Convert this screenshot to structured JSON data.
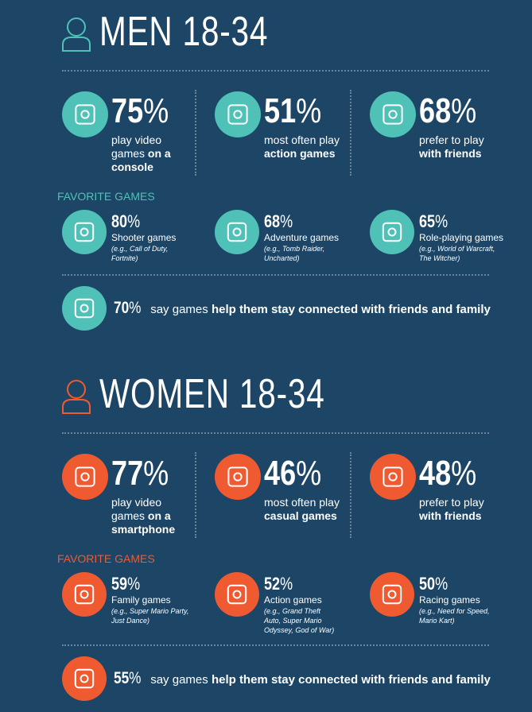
{
  "sections": [
    {
      "title": "MEN 18-34",
      "color": "#4fc1b6",
      "stats": [
        {
          "value": 75,
          "unit": "%",
          "parts": [
            {
              "text": "play video games"
            },
            {
              "text": "on a console",
              "bold": true
            }
          ]
        },
        {
          "value": 51,
          "unit": "%",
          "parts": [
            {
              "text": "most often play"
            },
            {
              "text": "action games",
              "bold": true
            }
          ]
        },
        {
          "value": 68,
          "unit": "%",
          "parts": [
            {
              "text": "prefer to play"
            },
            {
              "text": "with friends",
              "bold": true
            }
          ]
        }
      ],
      "favorites_label": "FAVORITE GAMES",
      "favorites": [
        {
          "value": 80,
          "unit": "%",
          "name": "Shooter games",
          "example": "(e.g., Call of Duty, Fortnite)"
        },
        {
          "value": 68,
          "unit": "%",
          "name": "Adventure games",
          "example": "(e.g., Tomb Raider, Uncharted)"
        },
        {
          "value": 65,
          "unit": "%",
          "name": "Role-playing games",
          "example": "(e.g., World of Warcraft, The Witcher)"
        }
      ],
      "connected": {
        "value": 70,
        "unit": "%",
        "text": "say games",
        "strong": "help them stay connected with friends and family"
      }
    },
    {
      "title": "WOMEN 18-34",
      "color": "#f05a30",
      "stats": [
        {
          "value": 77,
          "unit": "%",
          "parts": [
            {
              "text": "play video games"
            },
            {
              "text": "on a smartphone",
              "bold": true
            }
          ]
        },
        {
          "value": 46,
          "unit": "%",
          "parts": [
            {
              "text": "most often play"
            },
            {
              "text": "casual games",
              "bold": true
            }
          ]
        },
        {
          "value": 48,
          "unit": "%",
          "parts": [
            {
              "text": "prefer to play"
            },
            {
              "text": "with friends",
              "bold": true
            }
          ]
        }
      ],
      "favorites_label": "FAVORITE GAMES",
      "favorites": [
        {
          "value": 59,
          "unit": "%",
          "name": "Family games",
          "example": "(e.g., Super Mario Party, Just Dance)"
        },
        {
          "value": 52,
          "unit": "%",
          "name": "Action games",
          "example": "(e.g., Grand Theft Auto, Super Mario Odyssey, God of War)"
        },
        {
          "value": 50,
          "unit": "%",
          "name": "Racing games",
          "example": "(e.g., Need for Speed, Mario Kart)"
        }
      ],
      "connected": {
        "value": 55,
        "unit": "%",
        "text": "say games",
        "strong": "help them stay connected with friends and family"
      }
    }
  ]
}
